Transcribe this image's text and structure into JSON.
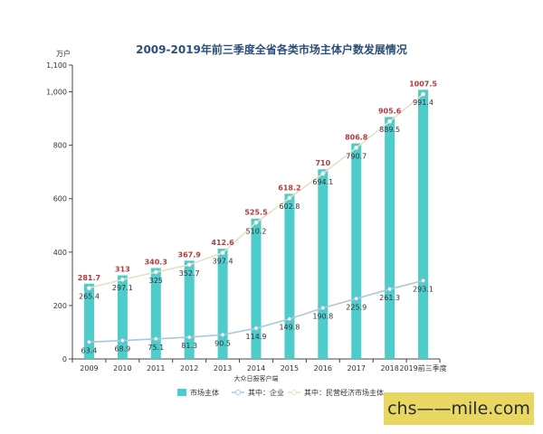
{
  "chart_data": {
    "type": "bar",
    "title": "2009-2019年前三季度全省各类市场主体户数发展情况",
    "ylabel": "万户",
    "note": "大众日报客户端",
    "ylim": [
      0,
      1100
    ],
    "yticks": [
      "0",
      "200",
      "400",
      "600",
      "800",
      "1,000",
      "1,100"
    ],
    "ytick_values": [
      0,
      200,
      400,
      600,
      800,
      1000,
      1100
    ],
    "categories": [
      "2009",
      "2010",
      "2011",
      "2012",
      "2013",
      "2014",
      "2015",
      "2016",
      "2017",
      "2018",
      "2019前三季度"
    ],
    "series": [
      {
        "name": "市场主体",
        "type": "bar",
        "color": "#4ecbcb",
        "label_color": "#b23a3a",
        "values": [
          281.7,
          313,
          340.3,
          367.9,
          412.6,
          525.5,
          618.2,
          710,
          806.8,
          905.6,
          1007.5
        ]
      },
      {
        "name": "其中：企业",
        "type": "line",
        "color": "#a9c8db",
        "values": [
          63.4,
          68.9,
          75.1,
          81.3,
          90.5,
          114.9,
          149.8,
          190.8,
          225.9,
          261.3,
          293.1
        ]
      },
      {
        "name": "其中：民营经济市场主体",
        "type": "line",
        "color": "#e8dfc6",
        "values": [
          265.4,
          297.1,
          325,
          352.7,
          397.4,
          510.2,
          602.8,
          694.1,
          790.7,
          889.5,
          991.4
        ]
      }
    ],
    "legend_position": "bottom",
    "grid": false
  },
  "watermark": "chs——mile.com"
}
